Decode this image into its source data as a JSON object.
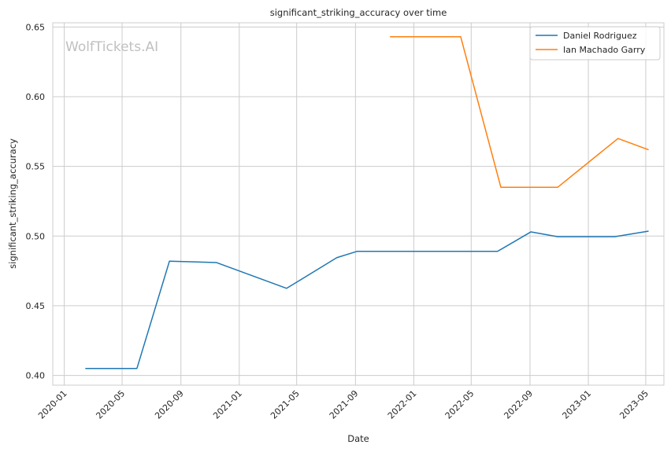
{
  "chart_data": {
    "type": "line",
    "title": "significant_striking_accuracy over time",
    "xlabel": "Date",
    "ylabel": "significant_striking_accuracy",
    "watermark": "WolfTickets.AI",
    "x_axis_type": "date",
    "xlim": [
      "2019-12-08",
      "2023-06-08"
    ],
    "ylim": [
      0.393,
      0.653
    ],
    "x_ticks": [
      "2020-01-01",
      "2020-05-01",
      "2020-09-01",
      "2021-01-01",
      "2021-05-01",
      "2021-09-01",
      "2022-01-01",
      "2022-05-01",
      "2022-09-01",
      "2023-01-01",
      "2023-05-01"
    ],
    "x_tick_labels": [
      "2020-01",
      "2020-05",
      "2020-09",
      "2021-01",
      "2021-05",
      "2021-09",
      "2022-01",
      "2022-05",
      "2022-09",
      "2023-01",
      "2023-05"
    ],
    "y_ticks": [
      0.4,
      0.45,
      0.5,
      0.55,
      0.6,
      0.65
    ],
    "y_tick_labels": [
      "0.40",
      "0.45",
      "0.50",
      "0.55",
      "0.60",
      "0.65"
    ],
    "grid": true,
    "legend_position": "top-right",
    "series": [
      {
        "name": "Daniel Rodriguez",
        "color": "#1f77b4",
        "points": [
          {
            "x": "2020-02-15",
            "y": 0.405
          },
          {
            "x": "2020-06-01",
            "y": 0.405
          },
          {
            "x": "2020-08-08",
            "y": 0.482
          },
          {
            "x": "2020-11-14",
            "y": 0.481
          },
          {
            "x": "2021-04-10",
            "y": 0.4625
          },
          {
            "x": "2021-07-24",
            "y": 0.4845
          },
          {
            "x": "2021-09-04",
            "y": 0.489
          },
          {
            "x": "2022-06-25",
            "y": 0.489
          },
          {
            "x": "2022-09-03",
            "y": 0.503
          },
          {
            "x": "2022-10-29",
            "y": 0.4995
          },
          {
            "x": "2023-02-25",
            "y": 0.4995
          },
          {
            "x": "2023-05-06",
            "y": 0.5035
          }
        ]
      },
      {
        "name": "Ian Machado Garry",
        "color": "#ff7f0e",
        "points": [
          {
            "x": "2021-11-13",
            "y": 0.643
          },
          {
            "x": "2022-04-09",
            "y": 0.643
          },
          {
            "x": "2022-07-02",
            "y": 0.535
          },
          {
            "x": "2022-10-29",
            "y": 0.535
          },
          {
            "x": "2023-03-04",
            "y": 0.57
          },
          {
            "x": "2023-05-06",
            "y": 0.562
          }
        ]
      }
    ]
  }
}
